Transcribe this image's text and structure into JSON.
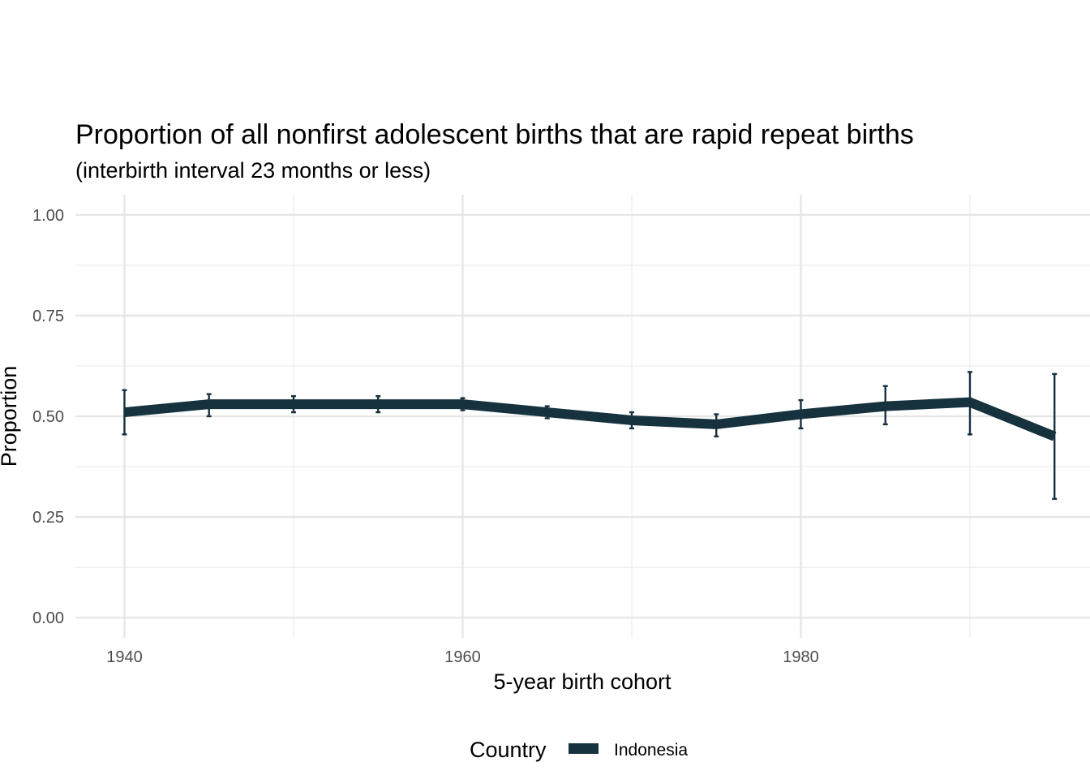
{
  "chart_data": {
    "type": "line",
    "title": "Proportion of all nonfirst adolescent births that are rapid repeat births",
    "subtitle": "(interbirth interval 23 months or less)",
    "xlabel": "5-year birth cohort",
    "ylabel": "Proportion",
    "xlim": [
      1937.1,
      1997.1
    ],
    "ylim": [
      -0.05,
      1.05
    ],
    "x_ticks": [
      1940,
      1960,
      1980
    ],
    "x_tick_labels": [
      "1940",
      "1960",
      "1980"
    ],
    "x_minor_ticks": [
      1950,
      1970,
      1990
    ],
    "y_ticks": [
      0,
      0.25,
      0.5,
      0.75,
      1.0
    ],
    "y_tick_labels": [
      "0.00",
      "0.25",
      "0.50",
      "0.75",
      "1.00"
    ],
    "y_minor_ticks": [
      0.125,
      0.375,
      0.625,
      0.875
    ],
    "grid": true,
    "legend": {
      "title": "Country",
      "position": "bottom"
    },
    "series": [
      {
        "name": "Indonesia",
        "color": "#17323f",
        "x": [
          1940,
          1945,
          1950,
          1955,
          1960,
          1965,
          1970,
          1975,
          1980,
          1985,
          1990,
          1995
        ],
        "y": [
          0.51,
          0.53,
          0.53,
          0.53,
          0.53,
          0.51,
          0.49,
          0.48,
          0.505,
          0.525,
          0.535,
          0.45
        ],
        "y_lower": [
          0.455,
          0.5,
          0.51,
          0.51,
          0.515,
          0.495,
          0.47,
          0.45,
          0.47,
          0.48,
          0.455,
          0.295
        ],
        "y_upper": [
          0.565,
          0.555,
          0.55,
          0.55,
          0.545,
          0.525,
          0.51,
          0.505,
          0.54,
          0.575,
          0.61,
          0.605
        ]
      }
    ]
  }
}
